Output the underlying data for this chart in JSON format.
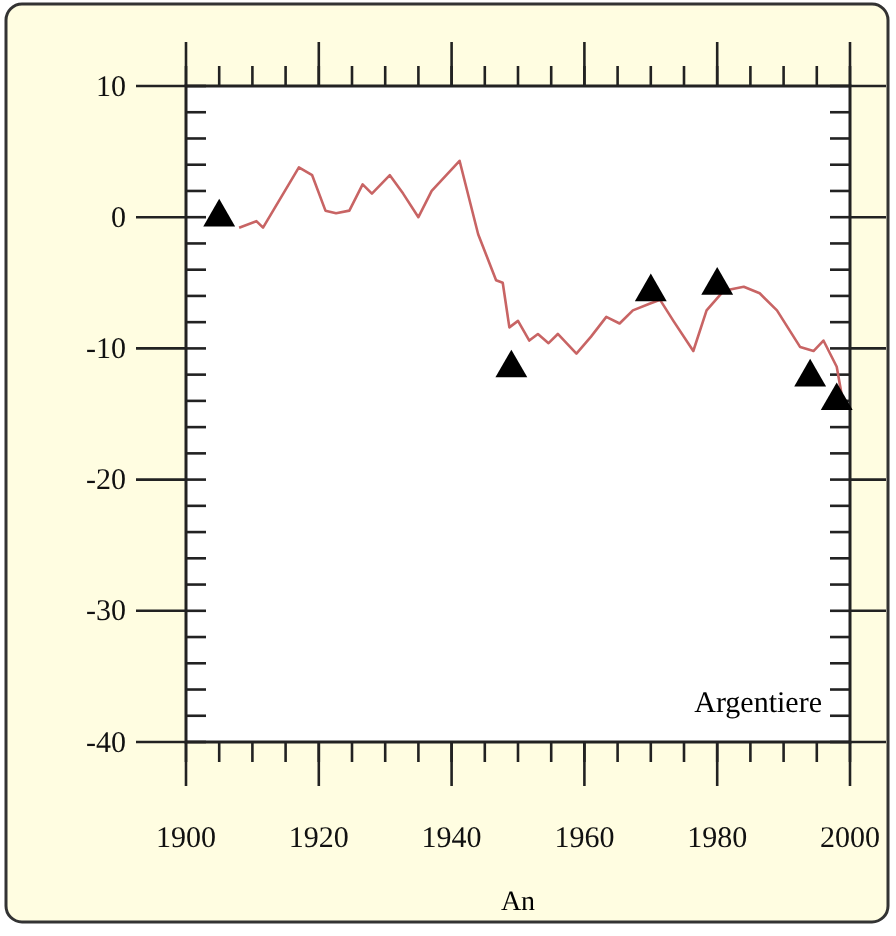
{
  "chart_data": {
    "type": "line",
    "xlabel": "An",
    "annotations": [
      "Argentiere"
    ],
    "xlim": [
      1900,
      2000
    ],
    "ylim": [
      -40,
      10
    ],
    "xticks": [
      1900,
      {
        "value": 1905,
        "label": null
      },
      {
        "value": 1910,
        "label": null
      },
      {
        "value": 1915,
        "label": null
      },
      1920,
      {
        "value": 1925,
        "label": null
      },
      {
        "value": 1930,
        "label": null
      },
      {
        "value": 1935,
        "label": null
      },
      1940,
      {
        "value": 1945,
        "label": null
      },
      {
        "value": 1950,
        "label": null
      },
      {
        "value": 1955,
        "label": null
      },
      1960,
      {
        "value": 1965,
        "label": null
      },
      {
        "value": 1970,
        "label": null
      },
      {
        "value": 1975,
        "label": null
      },
      1980,
      {
        "value": 1985,
        "label": null
      },
      {
        "value": 1990,
        "label": null
      },
      {
        "value": 1995,
        "label": null
      },
      2000
    ],
    "yticks": [
      -40,
      {
        "value": -38,
        "label": null
      },
      {
        "value": -36,
        "label": null
      },
      {
        "value": -34,
        "label": null
      },
      {
        "value": -32,
        "label": null
      },
      -30,
      {
        "value": -28,
        "label": null
      },
      {
        "value": -26,
        "label": null
      },
      {
        "value": -24,
        "label": null
      },
      {
        "value": -22,
        "label": null
      },
      -20,
      {
        "value": -18,
        "label": null
      },
      {
        "value": -16,
        "label": null
      },
      {
        "value": -14,
        "label": null
      },
      {
        "value": -12,
        "label": null
      },
      -10,
      {
        "value": -8,
        "label": null
      },
      {
        "value": -6,
        "label": null
      },
      {
        "value": -4,
        "label": null
      },
      {
        "value": -2,
        "label": null
      },
      0,
      {
        "value": 2,
        "label": null
      },
      {
        "value": 4,
        "label": null
      },
      {
        "value": 6,
        "label": null
      },
      {
        "value": 8,
        "label": null
      },
      10
    ],
    "series": [
      {
        "color": "#c86464",
        "x": [
          1908,
          1910.6,
          1911.6,
          1917,
          1919,
          1921,
          1922.6,
          1924.6,
          1926.6,
          1928,
          1930.7,
          1932.7,
          1935,
          1937,
          1941.2,
          1944,
          1946.7,
          1947.7,
          1948.7,
          1950,
          1951.7,
          1953,
          1954.6,
          1956,
          1958.8,
          1961,
          1963.3,
          1965.3,
          1967.3,
          1969.8,
          1971.4,
          1973.4,
          1976.4,
          1978.4,
          1981,
          1984,
          1986.4,
          1989,
          1992.5,
          1994.5,
          1996,
          1998,
          1998.7
        ],
        "values": [
          -0.8,
          -0.3,
          -0.8,
          3.8,
          3.2,
          0.5,
          0.3,
          0.5,
          2.5,
          1.8,
          3.2,
          1.8,
          0,
          2,
          4.3,
          -1.3,
          -4.8,
          -5,
          -8.4,
          -7.9,
          -9.4,
          -8.9,
          -9.6,
          -8.9,
          -10.4,
          -9.1,
          -7.6,
          -8.1,
          -7.1,
          -6.6,
          -6.3,
          -7.9,
          -10.2,
          -7.1,
          -5.6,
          -5.3,
          -5.8,
          -7.1,
          -9.9,
          -10.2,
          -9.4,
          -11.4,
          -13.4
        ]
      },
      {
        "type": "scatter",
        "color": "#000000",
        "marker": "triangle",
        "x": [
          1905,
          1949,
          1970,
          1980,
          1994,
          1998
        ],
        "values": [
          0,
          -11.5,
          -5.7,
          -5.2,
          -12.2,
          -14
        ]
      }
    ]
  }
}
